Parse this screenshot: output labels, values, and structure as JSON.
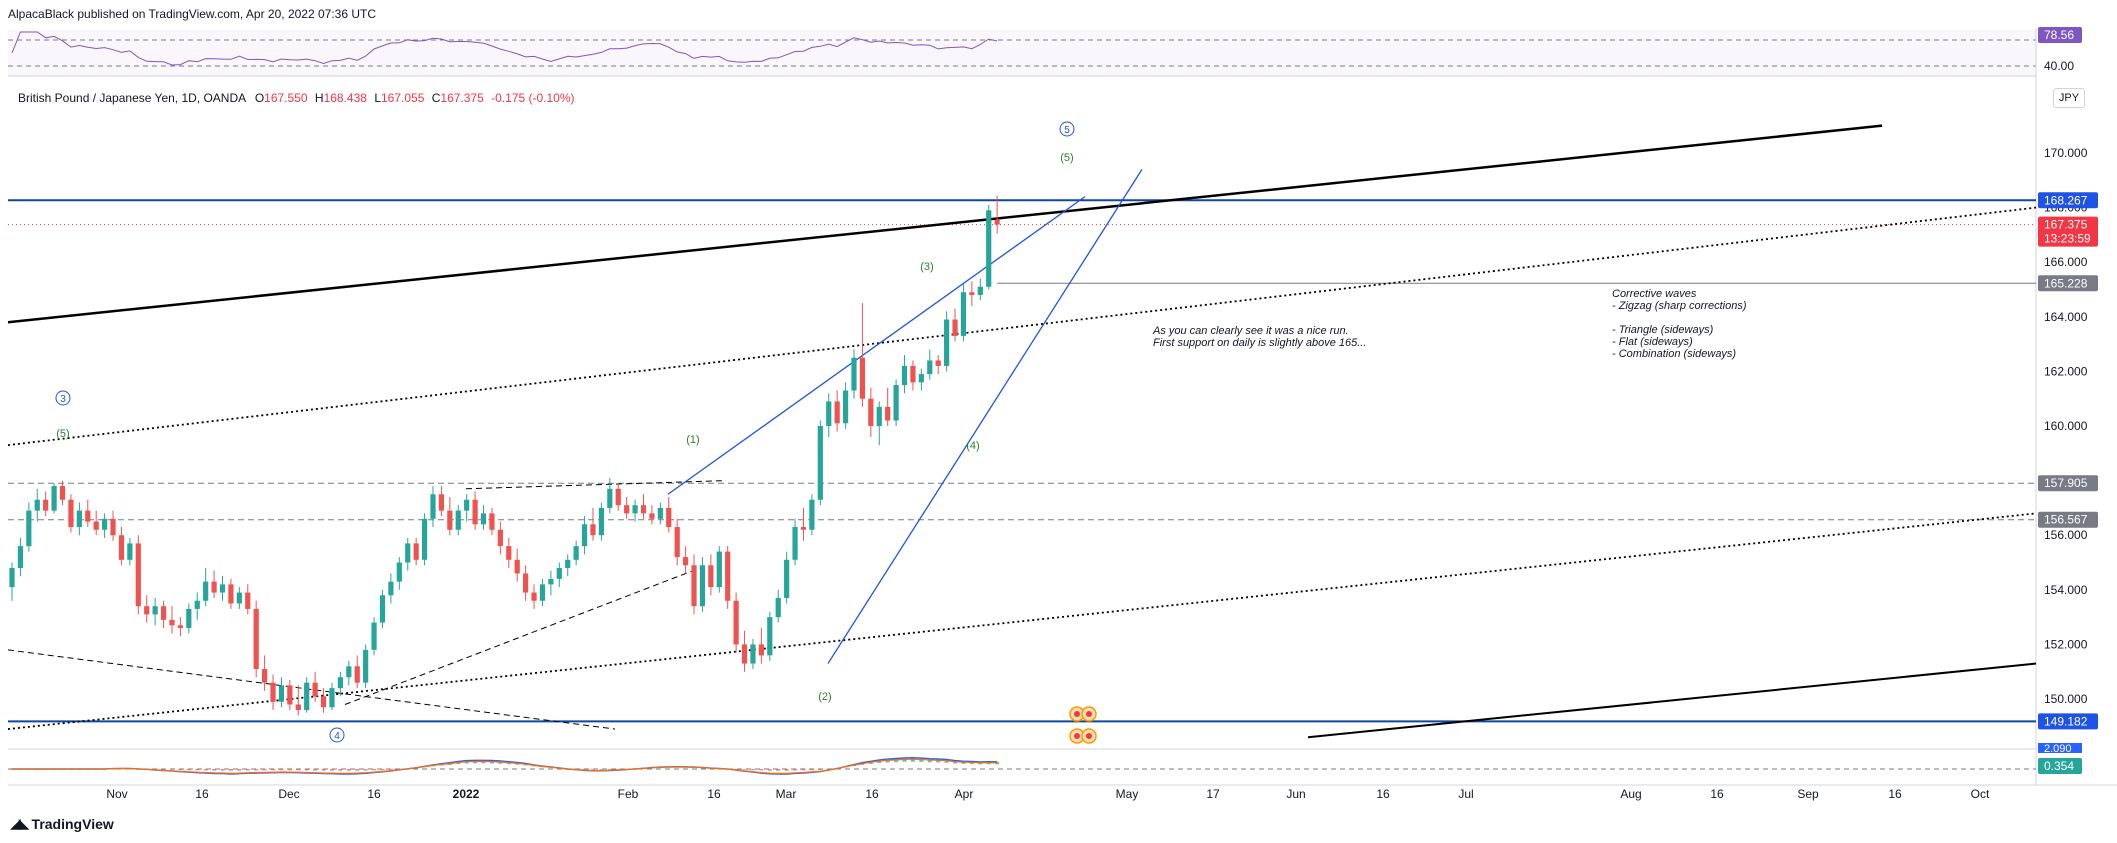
{
  "header": {
    "publisher": "AlpacaBlack published on TradingView.com, Apr 20, 2022 07:36 UTC",
    "symbol": "British Pound / Japanese Yen, 1D, OANDA",
    "ohlc": {
      "o_label": "O",
      "o": "167.550",
      "h_label": "H",
      "h": "168.438",
      "l_label": "L",
      "l": "167.055",
      "c_label": "C",
      "c": "167.375",
      "change": "-0.175 (-0.10%)"
    },
    "currency": "JPY"
  },
  "footer": {
    "brand": "TradingView"
  },
  "colors": {
    "up": "#26a69a",
    "down": "#ef5350",
    "level": "#0d47a1",
    "label_grey": "#787b86",
    "label_blue": "#1e53e5",
    "label_red": "#f23645",
    "wave_green": "#2e7d32",
    "wave_blue": "#1e53e5",
    "rsi": "#7e57c2"
  },
  "chart_data": {
    "type": "candlestick",
    "ylim": [
      148.5,
      171.5
    ],
    "y_ticks": [
      "150.000",
      "152.000",
      "154.000",
      "156.000",
      "158.000",
      "160.000",
      "162.000",
      "164.000",
      "166.000",
      "168.000",
      "170.000"
    ],
    "x_ticks": [
      "Nov",
      "16",
      "Dec",
      "16",
      "2022",
      "Feb",
      "16",
      "Mar",
      "16",
      "Apr",
      "May",
      "17",
      "Jun",
      "16",
      "Jul",
      "Aug",
      "16",
      "Sep",
      "16",
      "Oct"
    ],
    "price_labels": [
      {
        "value": 168.267,
        "text": "168.267",
        "style": "blue"
      },
      {
        "value": 167.375,
        "text": "167.375",
        "sub": "13:23:59",
        "style": "red"
      },
      {
        "value": 165.228,
        "text": "165.228",
        "style": "grey"
      },
      {
        "value": 157.905,
        "text": "157.905",
        "style": "grey"
      },
      {
        "value": 156.567,
        "text": "156.567",
        "style": "grey"
      },
      {
        "value": 149.182,
        "text": "149.182",
        "style": "blue"
      }
    ],
    "horizontal_levels": [
      168.267,
      165.228,
      157.905,
      156.567,
      149.182
    ],
    "wave_labels": {
      "green": [
        "(5)",
        "(1)",
        "(2)",
        "(3)",
        "(4)",
        "(5)"
      ],
      "blue_circled": [
        "3",
        "4",
        "5"
      ]
    },
    "annotations": {
      "run_note": [
        "As you can clearly see it was a nice run.",
        "First support on daily is slightly above 165..."
      ],
      "corrective": [
        "Corrective waves",
        " - Zigzag (sharp corrections)",
        "",
        "- Triangle (sideways)",
        "- Flat (sideways)",
        "- Combination (sideways)"
      ]
    },
    "rsi": {
      "labels": [
        "78.56",
        "40.00"
      ],
      "value": 78.56
    },
    "macd": {
      "labels": [
        "2.090",
        "0.354"
      ]
    },
    "candles": [
      {
        "o": 154.1,
        "h": 155.0,
        "l": 153.6,
        "c": 154.8
      },
      {
        "o": 154.8,
        "h": 155.9,
        "l": 154.5,
        "c": 155.6
      },
      {
        "o": 155.6,
        "h": 157.2,
        "l": 155.4,
        "c": 156.9
      },
      {
        "o": 156.9,
        "h": 157.7,
        "l": 156.5,
        "c": 157.3
      },
      {
        "o": 157.3,
        "h": 157.6,
        "l": 156.7,
        "c": 156.9
      },
      {
        "o": 156.9,
        "h": 157.9,
        "l": 156.8,
        "c": 157.8
      },
      {
        "o": 157.8,
        "h": 158.0,
        "l": 157.1,
        "c": 157.3
      },
      {
        "o": 157.3,
        "h": 157.5,
        "l": 156.1,
        "c": 156.3
      },
      {
        "o": 156.3,
        "h": 157.2,
        "l": 156.0,
        "c": 156.9
      },
      {
        "o": 156.9,
        "h": 157.3,
        "l": 156.3,
        "c": 156.5
      },
      {
        "o": 156.5,
        "h": 156.9,
        "l": 156.0,
        "c": 156.2
      },
      {
        "o": 156.2,
        "h": 156.8,
        "l": 155.9,
        "c": 156.6
      },
      {
        "o": 156.6,
        "h": 156.9,
        "l": 155.8,
        "c": 156.0
      },
      {
        "o": 156.0,
        "h": 156.3,
        "l": 154.9,
        "c": 155.1
      },
      {
        "o": 155.1,
        "h": 155.9,
        "l": 154.9,
        "c": 155.7
      },
      {
        "o": 155.7,
        "h": 156.0,
        "l": 153.1,
        "c": 153.4
      },
      {
        "o": 153.4,
        "h": 153.8,
        "l": 152.8,
        "c": 153.1
      },
      {
        "o": 153.1,
        "h": 153.7,
        "l": 152.7,
        "c": 153.4
      },
      {
        "o": 153.4,
        "h": 153.6,
        "l": 152.6,
        "c": 152.9
      },
      {
        "o": 152.9,
        "h": 153.4,
        "l": 152.4,
        "c": 152.7
      },
      {
        "o": 152.7,
        "h": 153.0,
        "l": 152.3,
        "c": 152.6
      },
      {
        "o": 152.6,
        "h": 153.5,
        "l": 152.4,
        "c": 153.3
      },
      {
        "o": 153.3,
        "h": 153.9,
        "l": 152.9,
        "c": 153.6
      },
      {
        "o": 153.6,
        "h": 154.8,
        "l": 153.4,
        "c": 154.3
      },
      {
        "o": 154.3,
        "h": 154.7,
        "l": 153.7,
        "c": 153.9
      },
      {
        "o": 153.9,
        "h": 154.5,
        "l": 153.6,
        "c": 154.2
      },
      {
        "o": 154.2,
        "h": 154.4,
        "l": 153.3,
        "c": 153.5
      },
      {
        "o": 153.5,
        "h": 154.1,
        "l": 153.3,
        "c": 153.9
      },
      {
        "o": 153.9,
        "h": 154.2,
        "l": 153.1,
        "c": 153.3
      },
      {
        "o": 153.3,
        "h": 153.6,
        "l": 150.8,
        "c": 151.1
      },
      {
        "o": 151.1,
        "h": 151.6,
        "l": 150.3,
        "c": 150.6
      },
      {
        "o": 150.6,
        "h": 150.9,
        "l": 149.6,
        "c": 149.9
      },
      {
        "o": 149.9,
        "h": 150.8,
        "l": 149.7,
        "c": 150.5
      },
      {
        "o": 150.5,
        "h": 150.7,
        "l": 149.6,
        "c": 149.8
      },
      {
        "o": 149.8,
        "h": 150.5,
        "l": 149.4,
        "c": 149.6
      },
      {
        "o": 149.6,
        "h": 150.8,
        "l": 149.5,
        "c": 150.6
      },
      {
        "o": 150.6,
        "h": 151.0,
        "l": 149.9,
        "c": 150.1
      },
      {
        "o": 150.1,
        "h": 150.4,
        "l": 149.5,
        "c": 149.7
      },
      {
        "o": 149.7,
        "h": 150.6,
        "l": 149.6,
        "c": 150.4
      },
      {
        "o": 150.4,
        "h": 151.0,
        "l": 150.1,
        "c": 150.8
      },
      {
        "o": 150.8,
        "h": 151.4,
        "l": 150.5,
        "c": 151.2
      },
      {
        "o": 151.2,
        "h": 151.6,
        "l": 150.4,
        "c": 150.6
      },
      {
        "o": 150.6,
        "h": 152.0,
        "l": 150.4,
        "c": 151.8
      },
      {
        "o": 151.8,
        "h": 153.0,
        "l": 151.6,
        "c": 152.8
      },
      {
        "o": 152.8,
        "h": 154.0,
        "l": 152.6,
        "c": 153.8
      },
      {
        "o": 153.8,
        "h": 154.6,
        "l": 153.5,
        "c": 154.3
      },
      {
        "o": 154.3,
        "h": 155.2,
        "l": 154.0,
        "c": 155.0
      },
      {
        "o": 155.0,
        "h": 155.9,
        "l": 154.7,
        "c": 155.7
      },
      {
        "o": 155.7,
        "h": 155.9,
        "l": 154.9,
        "c": 155.1
      },
      {
        "o": 155.1,
        "h": 156.8,
        "l": 154.9,
        "c": 156.6
      },
      {
        "o": 156.6,
        "h": 157.8,
        "l": 156.3,
        "c": 157.5
      },
      {
        "o": 157.5,
        "h": 157.8,
        "l": 156.7,
        "c": 156.9
      },
      {
        "o": 156.9,
        "h": 157.4,
        "l": 156.0,
        "c": 156.2
      },
      {
        "o": 156.2,
        "h": 157.1,
        "l": 156.0,
        "c": 156.9
      },
      {
        "o": 156.9,
        "h": 157.5,
        "l": 156.5,
        "c": 157.3
      },
      {
        "o": 157.3,
        "h": 157.6,
        "l": 156.2,
        "c": 156.4
      },
      {
        "o": 156.4,
        "h": 157.1,
        "l": 156.2,
        "c": 156.8
      },
      {
        "o": 156.8,
        "h": 157.0,
        "l": 156.0,
        "c": 156.2
      },
      {
        "o": 156.2,
        "h": 156.5,
        "l": 155.3,
        "c": 155.6
      },
      {
        "o": 155.6,
        "h": 155.9,
        "l": 154.8,
        "c": 155.1
      },
      {
        "o": 155.1,
        "h": 155.5,
        "l": 154.3,
        "c": 154.6
      },
      {
        "o": 154.6,
        "h": 154.9,
        "l": 153.6,
        "c": 153.9
      },
      {
        "o": 153.9,
        "h": 154.2,
        "l": 153.3,
        "c": 153.6
      },
      {
        "o": 153.6,
        "h": 154.4,
        "l": 153.4,
        "c": 154.2
      },
      {
        "o": 154.2,
        "h": 154.7,
        "l": 153.8,
        "c": 154.4
      },
      {
        "o": 154.4,
        "h": 155.0,
        "l": 154.1,
        "c": 154.8
      },
      {
        "o": 154.8,
        "h": 155.3,
        "l": 154.5,
        "c": 155.1
      },
      {
        "o": 155.1,
        "h": 155.8,
        "l": 154.9,
        "c": 155.6
      },
      {
        "o": 155.6,
        "h": 156.7,
        "l": 155.3,
        "c": 156.4
      },
      {
        "o": 156.4,
        "h": 157.0,
        "l": 155.8,
        "c": 156.0
      },
      {
        "o": 156.0,
        "h": 157.2,
        "l": 155.8,
        "c": 157.0
      },
      {
        "o": 157.0,
        "h": 158.1,
        "l": 156.8,
        "c": 157.7
      },
      {
        "o": 157.7,
        "h": 157.9,
        "l": 156.9,
        "c": 157.1
      },
      {
        "o": 157.1,
        "h": 157.4,
        "l": 156.6,
        "c": 156.8
      },
      {
        "o": 156.8,
        "h": 157.3,
        "l": 156.5,
        "c": 157.1
      },
      {
        "o": 157.1,
        "h": 157.5,
        "l": 156.6,
        "c": 156.8
      },
      {
        "o": 156.8,
        "h": 157.1,
        "l": 156.4,
        "c": 156.6
      },
      {
        "o": 156.6,
        "h": 157.2,
        "l": 156.4,
        "c": 157.0
      },
      {
        "o": 157.0,
        "h": 157.4,
        "l": 156.1,
        "c": 156.3
      },
      {
        "o": 156.3,
        "h": 156.6,
        "l": 154.9,
        "c": 155.2
      },
      {
        "o": 155.2,
        "h": 155.6,
        "l": 154.6,
        "c": 154.9
      },
      {
        "o": 154.9,
        "h": 155.3,
        "l": 153.1,
        "c": 153.4
      },
      {
        "o": 153.4,
        "h": 155.2,
        "l": 153.2,
        "c": 154.9
      },
      {
        "o": 154.9,
        "h": 155.3,
        "l": 153.8,
        "c": 154.1
      },
      {
        "o": 154.1,
        "h": 155.6,
        "l": 153.9,
        "c": 155.4
      },
      {
        "o": 155.4,
        "h": 155.6,
        "l": 153.3,
        "c": 153.6
      },
      {
        "o": 153.6,
        "h": 153.9,
        "l": 151.7,
        "c": 152.0
      },
      {
        "o": 152.0,
        "h": 152.5,
        "l": 151.0,
        "c": 151.3
      },
      {
        "o": 151.3,
        "h": 152.2,
        "l": 151.1,
        "c": 152.0
      },
      {
        "o": 152.0,
        "h": 152.6,
        "l": 151.3,
        "c": 151.6
      },
      {
        "o": 151.6,
        "h": 153.2,
        "l": 151.4,
        "c": 153.0
      },
      {
        "o": 153.0,
        "h": 154.0,
        "l": 152.8,
        "c": 153.7
      },
      {
        "o": 153.7,
        "h": 155.4,
        "l": 153.5,
        "c": 155.1
      },
      {
        "o": 155.1,
        "h": 156.6,
        "l": 154.9,
        "c": 156.3
      },
      {
        "o": 156.3,
        "h": 157.0,
        "l": 155.8,
        "c": 156.2
      },
      {
        "o": 156.2,
        "h": 157.5,
        "l": 156.0,
        "c": 157.3
      },
      {
        "o": 157.3,
        "h": 160.2,
        "l": 157.1,
        "c": 160.0
      },
      {
        "o": 160.0,
        "h": 161.2,
        "l": 159.6,
        "c": 160.9
      },
      {
        "o": 160.9,
        "h": 161.3,
        "l": 159.8,
        "c": 160.1
      },
      {
        "o": 160.1,
        "h": 161.6,
        "l": 159.9,
        "c": 161.3
      },
      {
        "o": 161.3,
        "h": 162.8,
        "l": 161.0,
        "c": 162.5
      },
      {
        "o": 162.5,
        "h": 164.5,
        "l": 160.7,
        "c": 161.0
      },
      {
        "o": 161.0,
        "h": 161.4,
        "l": 159.6,
        "c": 160.0
      },
      {
        "o": 160.0,
        "h": 160.9,
        "l": 159.3,
        "c": 160.7
      },
      {
        "o": 160.7,
        "h": 161.4,
        "l": 160.0,
        "c": 160.2
      },
      {
        "o": 160.2,
        "h": 161.7,
        "l": 160.0,
        "c": 161.5
      },
      {
        "o": 161.5,
        "h": 162.6,
        "l": 161.2,
        "c": 162.2
      },
      {
        "o": 162.2,
        "h": 162.4,
        "l": 161.3,
        "c": 161.6
      },
      {
        "o": 161.6,
        "h": 162.1,
        "l": 161.3,
        "c": 161.9
      },
      {
        "o": 161.9,
        "h": 162.8,
        "l": 161.7,
        "c": 162.4
      },
      {
        "o": 162.4,
        "h": 162.6,
        "l": 161.9,
        "c": 162.2
      },
      {
        "o": 162.2,
        "h": 164.2,
        "l": 162.0,
        "c": 163.9
      },
      {
        "o": 163.9,
        "h": 164.3,
        "l": 163.1,
        "c": 163.3
      },
      {
        "o": 163.3,
        "h": 165.2,
        "l": 163.1,
        "c": 164.9
      },
      {
        "o": 164.9,
        "h": 165.3,
        "l": 164.4,
        "c": 164.8
      },
      {
        "o": 164.8,
        "h": 165.4,
        "l": 164.6,
        "c": 165.1
      },
      {
        "o": 165.1,
        "h": 168.1,
        "l": 165.0,
        "c": 167.9
      },
      {
        "o": 167.55,
        "h": 168.438,
        "l": 167.055,
        "c": 167.375
      }
    ]
  }
}
